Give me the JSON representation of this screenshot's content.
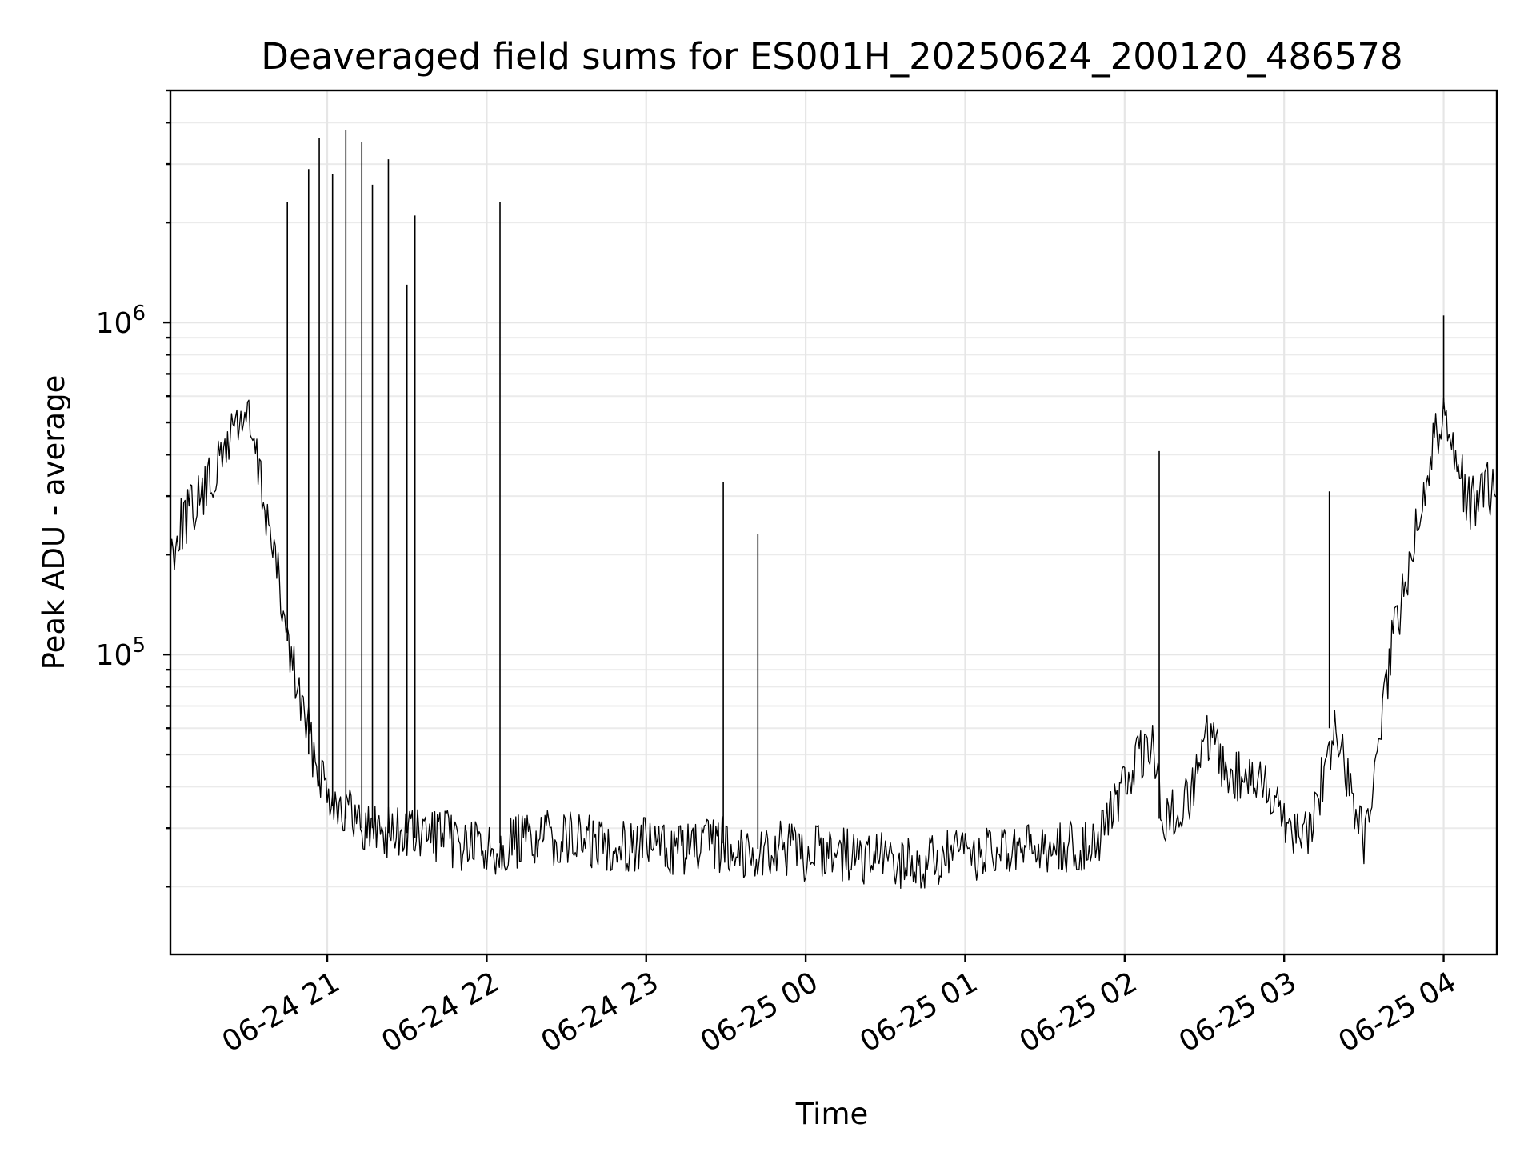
{
  "chart_data": {
    "type": "line",
    "title": "Deaveraged field sums for ES001H_20250624_200120_486578",
    "xlabel": "Time",
    "ylabel": "Peak ADU - average",
    "yscale": "log",
    "ylim": [
      12500,
      5000000
    ],
    "xlim": [
      "2025-06-24 20:01",
      "2025-06-25 04:20"
    ],
    "grid": true,
    "x_ticks": [
      "06-24 21",
      "06-24 22",
      "06-24 23",
      "06-25 00",
      "06-25 01",
      "06-25 02",
      "06-25 03",
      "06-25 04"
    ],
    "y_ticks": [
      "10^5",
      "10^6"
    ],
    "line_color": "#000000",
    "series": [
      {
        "x": [
          "2025-06-24 20:01",
          "2025-06-24 20:05",
          "2025-06-24 20:10",
          "2025-06-24 20:15",
          "2025-06-24 20:20",
          "2025-06-24 20:25",
          "2025-06-24 20:30",
          "2025-06-24 20:35",
          "2025-06-24 20:40",
          "2025-06-24 20:45",
          "2025-06-24 20:50",
          "2025-06-24 20:55",
          "2025-06-24 21:00",
          "2025-06-24 21:05",
          "2025-06-24 21:10",
          "2025-06-24 21:15",
          "2025-06-24 21:20",
          "2025-06-24 21:25",
          "2025-06-24 21:30",
          "2025-06-24 21:35",
          "2025-06-24 21:40",
          "2025-06-24 21:50",
          "2025-06-24 22:00",
          "2025-06-24 22:10",
          "2025-06-24 22:20",
          "2025-06-24 22:30",
          "2025-06-24 22:40",
          "2025-06-24 22:50",
          "2025-06-24 23:00",
          "2025-06-24 23:10",
          "2025-06-24 23:20",
          "2025-06-24 23:30",
          "2025-06-24 23:40",
          "2025-06-24 23:50",
          "2025-06-25 00:00",
          "2025-06-25 00:10",
          "2025-06-25 00:20",
          "2025-06-25 00:30",
          "2025-06-25 00:40",
          "2025-06-25 00:50",
          "2025-06-25 01:00",
          "2025-06-25 01:10",
          "2025-06-25 01:20",
          "2025-06-25 01:30",
          "2025-06-25 01:40",
          "2025-06-25 01:50",
          "2025-06-25 02:00",
          "2025-06-25 02:05",
          "2025-06-25 02:10",
          "2025-06-25 02:15",
          "2025-06-25 02:20",
          "2025-06-25 02:25",
          "2025-06-25 02:30",
          "2025-06-25 02:35",
          "2025-06-25 02:40",
          "2025-06-25 02:45",
          "2025-06-25 02:50",
          "2025-06-25 02:55",
          "2025-06-25 03:00",
          "2025-06-25 03:05",
          "2025-06-25 03:10",
          "2025-06-25 03:15",
          "2025-06-25 03:20",
          "2025-06-25 03:25",
          "2025-06-25 03:30",
          "2025-06-25 03:35",
          "2025-06-25 03:40",
          "2025-06-25 03:45",
          "2025-06-25 03:50",
          "2025-06-25 03:55",
          "2025-06-25 04:00",
          "2025-06-25 04:05",
          "2025-06-25 04:10",
          "2025-06-25 04:15",
          "2025-06-25 04:20"
        ],
        "y": [
          200000,
          250000,
          280000,
          320000,
          380000,
          500000,
          520000,
          330000,
          200000,
          110000,
          72000,
          50000,
          40000,
          35000,
          32000,
          30000,
          30000,
          29000,
          29000,
          28000,
          29000,
          27000,
          26000,
          27000,
          28000,
          28000,
          27000,
          27000,
          27000,
          26000,
          26000,
          27000,
          25000,
          26000,
          25000,
          26000,
          24000,
          24000,
          23000,
          24000,
          25000,
          25000,
          25000,
          26000,
          26000,
          28000,
          40000,
          48000,
          55000,
          32000,
          33000,
          38000,
          55000,
          50000,
          42000,
          45000,
          40000,
          40000,
          32000,
          30000,
          30000,
          45000,
          60000,
          38000,
          28000,
          45000,
          100000,
          160000,
          250000,
          400000,
          550000,
          380000,
          280000,
          320000,
          300000
        ]
      }
    ],
    "spikes": [
      {
        "x": "2025-06-24 20:45",
        "y": 2300000
      },
      {
        "x": "2025-06-24 20:53",
        "y": 2900000
      },
      {
        "x": "2025-06-24 20:57",
        "y": 3600000
      },
      {
        "x": "2025-06-24 21:02",
        "y": 2800000
      },
      {
        "x": "2025-06-24 21:07",
        "y": 3800000
      },
      {
        "x": "2025-06-24 21:13",
        "y": 3500000
      },
      {
        "x": "2025-06-24 21:17",
        "y": 2600000
      },
      {
        "x": "2025-06-24 21:23",
        "y": 3100000
      },
      {
        "x": "2025-06-24 21:30",
        "y": 1300000
      },
      {
        "x": "2025-06-24 21:33",
        "y": 2100000
      },
      {
        "x": "2025-06-24 22:05",
        "y": 2300000
      },
      {
        "x": "2025-06-24 23:29",
        "y": 330000
      },
      {
        "x": "2025-06-24 23:42",
        "y": 230000
      },
      {
        "x": "2025-06-25 02:13",
        "y": 410000
      },
      {
        "x": "2025-06-25 03:17",
        "y": 310000
      },
      {
        "x": "2025-06-25 04:00",
        "y": 1050000
      }
    ]
  }
}
